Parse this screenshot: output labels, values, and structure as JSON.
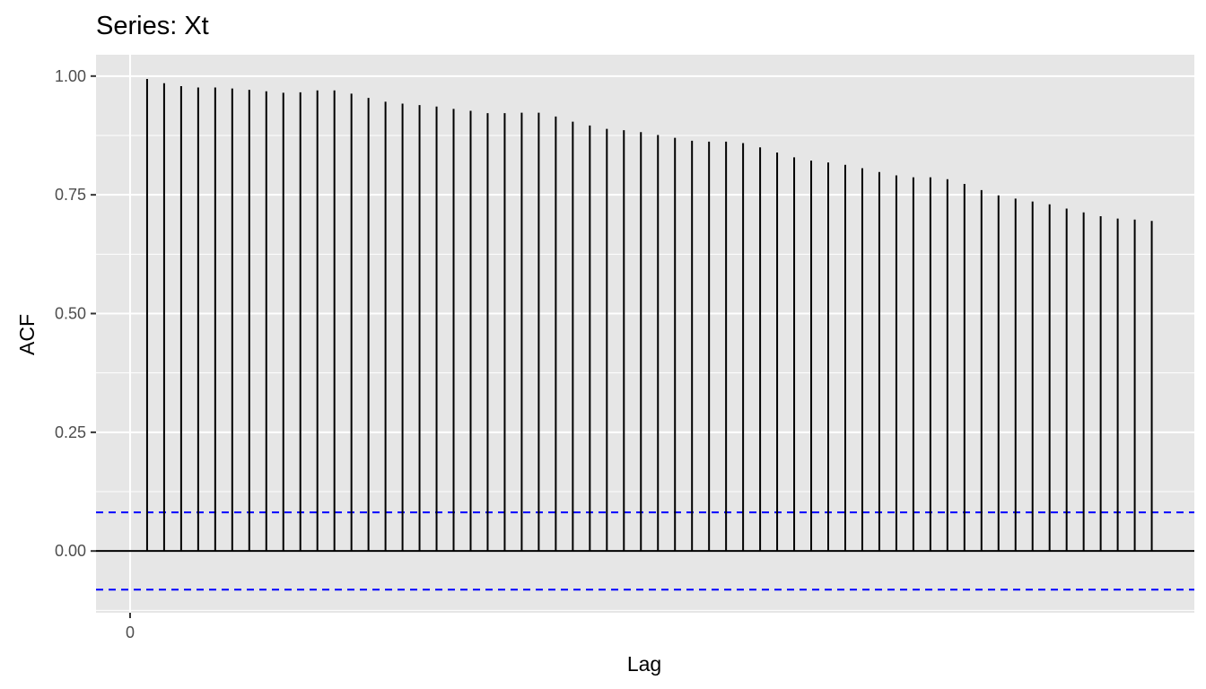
{
  "chart_data": {
    "type": "bar",
    "title": "Series: Xt",
    "xlabel": "Lag",
    "ylabel": "ACF",
    "x_ticks": [
      {
        "value": 0,
        "label": "0"
      }
    ],
    "y_ticks": [
      {
        "value": 0.0,
        "label": "0.00"
      },
      {
        "value": 0.25,
        "label": "0.25"
      },
      {
        "value": 0.5,
        "label": "0.50"
      },
      {
        "value": 0.75,
        "label": "0.75"
      },
      {
        "value": 1.0,
        "label": "1.00"
      }
    ],
    "xlim": [
      -2,
      62.5
    ],
    "ylim": [
      -0.13,
      1.045
    ],
    "grid": true,
    "panel_background": "#e6e6e6",
    "grid_color": "#ffffff",
    "bar_color": "#000000",
    "confidence_limit": 0.0813,
    "confidence_color": "#0000ff",
    "lags": [
      1,
      2,
      3,
      4,
      5,
      6,
      7,
      8,
      9,
      10,
      11,
      12,
      13,
      14,
      15,
      16,
      17,
      18,
      19,
      20,
      21,
      22,
      23,
      24,
      25,
      26,
      27,
      28,
      29,
      30,
      31,
      32,
      33,
      34,
      35,
      36,
      37,
      38,
      39,
      40,
      41,
      42,
      43,
      44,
      45,
      46,
      47,
      48,
      49,
      50,
      51,
      52,
      53,
      54,
      55,
      56,
      57,
      58,
      59,
      60
    ],
    "values": [
      0.994,
      0.985,
      0.979,
      0.976,
      0.976,
      0.974,
      0.971,
      0.968,
      0.965,
      0.966,
      0.97,
      0.97,
      0.963,
      0.954,
      0.946,
      0.942,
      0.939,
      0.936,
      0.931,
      0.927,
      0.922,
      0.922,
      0.923,
      0.923,
      0.915,
      0.904,
      0.896,
      0.889,
      0.886,
      0.882,
      0.876,
      0.87,
      0.864,
      0.862,
      0.862,
      0.859,
      0.85,
      0.839,
      0.829,
      0.822,
      0.818,
      0.813,
      0.806,
      0.798,
      0.791,
      0.787,
      0.787,
      0.783,
      0.773,
      0.76,
      0.749,
      0.742,
      0.736,
      0.73,
      0.721,
      0.713,
      0.705,
      0.7,
      0.698,
      0.695
    ]
  }
}
